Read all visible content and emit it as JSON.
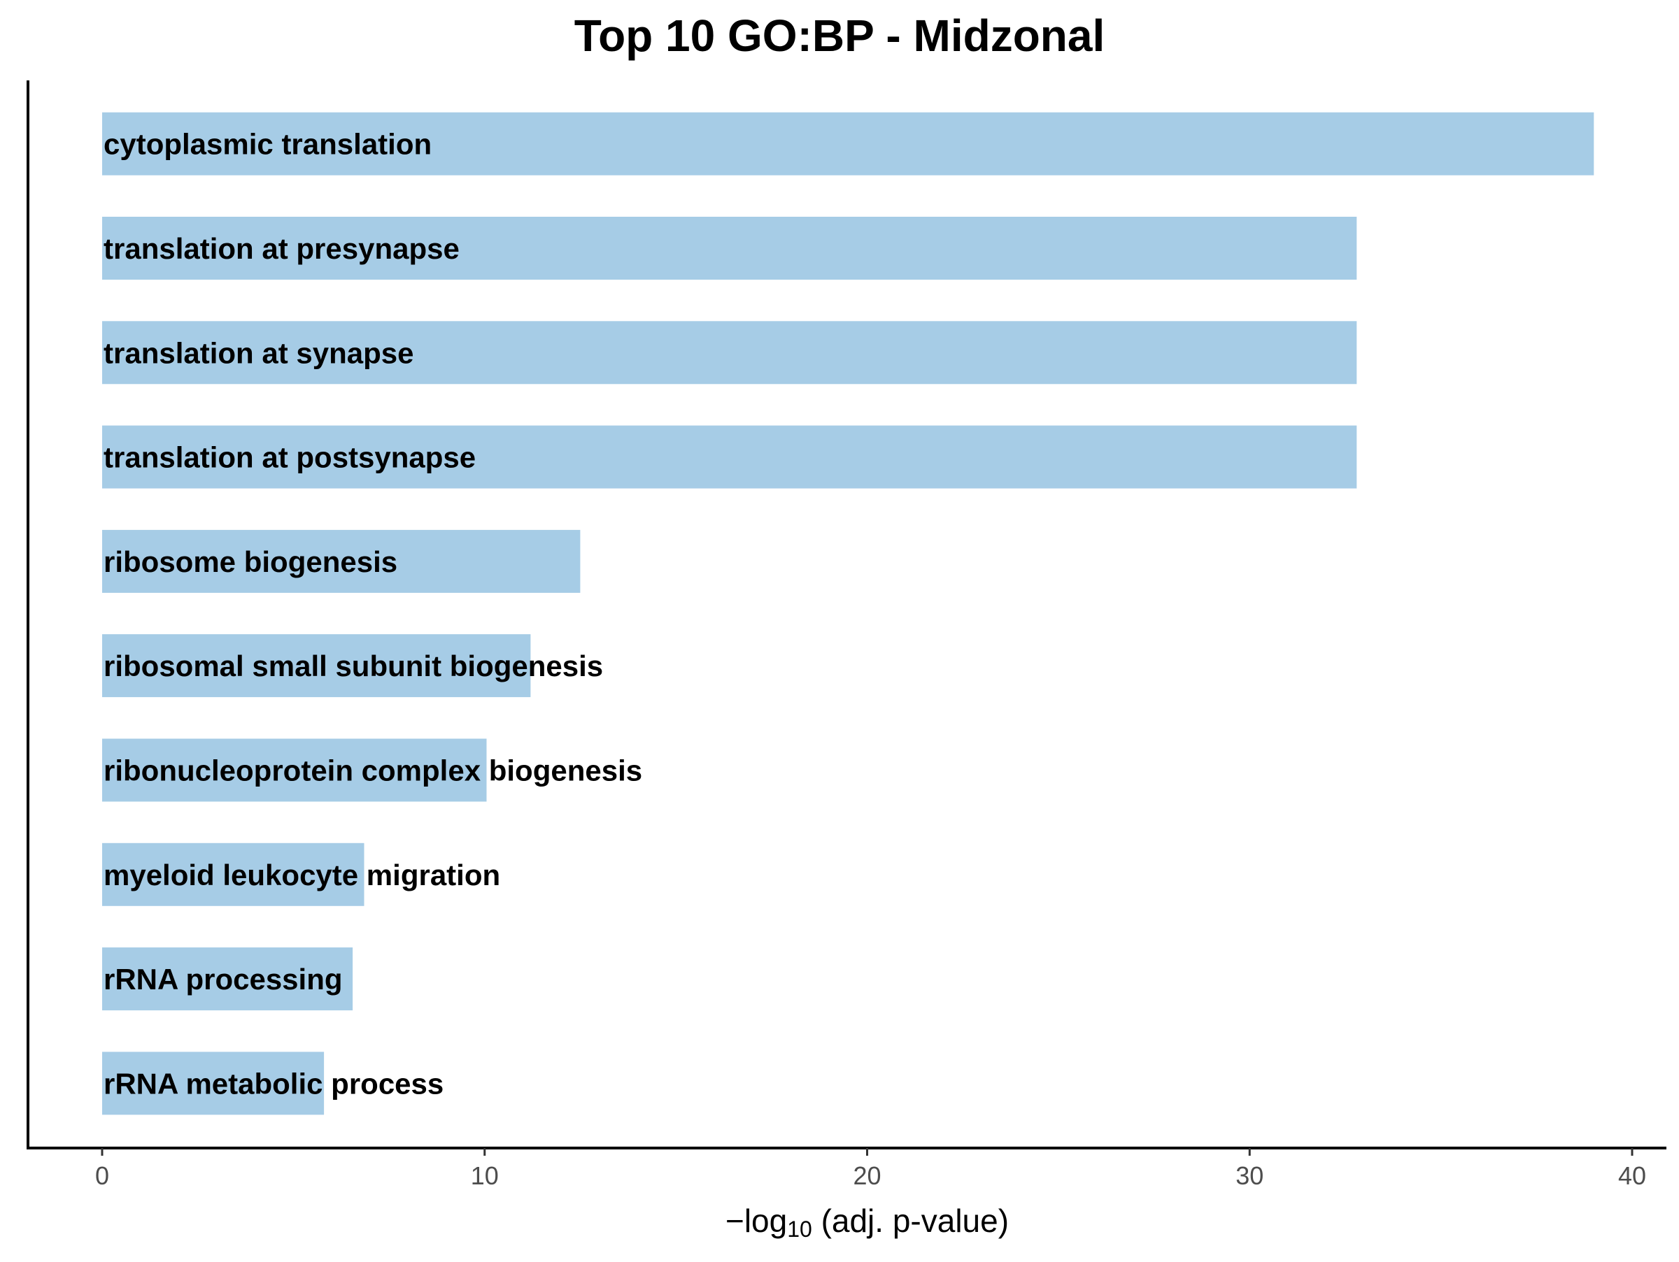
{
  "chart_data": {
    "type": "bar",
    "orientation": "horizontal",
    "title": "Top 10 GO:BP - Midzonal",
    "xlabel": {
      "prefix": "−log",
      "subscript": "10",
      "suffix": " (adj. p-value)"
    },
    "ylabel": "",
    "xlim": [
      0,
      40
    ],
    "x_ticks": [
      "0",
      "10",
      "20",
      "30",
      "40"
    ],
    "categories": [
      "cytoplasmic translation",
      "translation at presynapse",
      "translation at synapse",
      "translation at postsynapse",
      "ribosome biogenesis",
      "ribosomal small subunit biogenesis",
      "ribonucleoprotein complex biogenesis",
      "myeloid leukocyte migration",
      "rRNA processing",
      "rRNA metabolic process"
    ],
    "values": [
      39.0,
      32.8,
      32.8,
      32.8,
      12.5,
      11.2,
      10.05,
      6.85,
      6.55,
      5.8
    ],
    "bar_color": "#a6cce6",
    "grid": false,
    "legend": "none"
  }
}
